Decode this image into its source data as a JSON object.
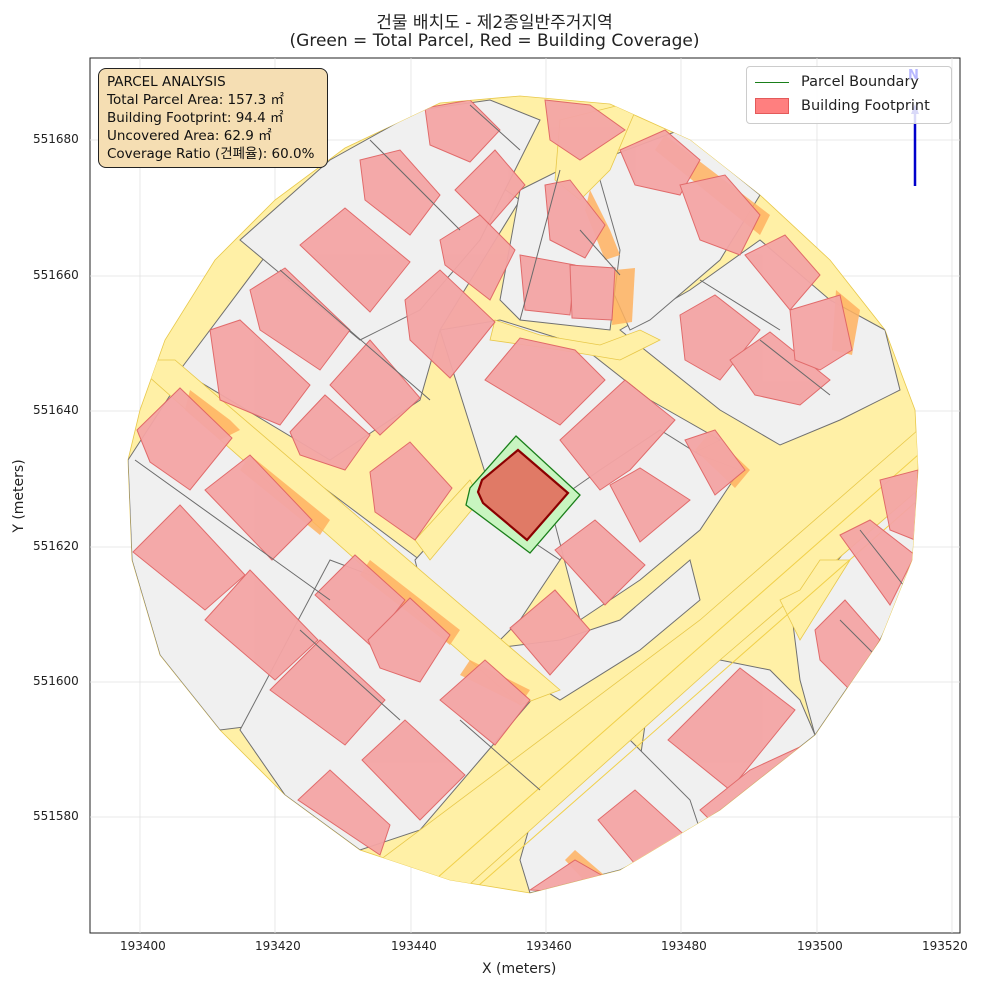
{
  "title": {
    "line1": "건물 배치도 - 제2종일반주거지역",
    "line2": "(Green = Total Parcel, Red = Building Coverage)"
  },
  "axes": {
    "xlabel": "X (meters)",
    "ylabel": "Y (meters)",
    "xticks": [
      "193400",
      "193420",
      "193440",
      "193460",
      "193480",
      "193500",
      "193520"
    ],
    "yticks": [
      "551680",
      "551660",
      "551640",
      "551620",
      "551600",
      "551580"
    ]
  },
  "info_box": {
    "heading": "PARCEL ANALYSIS",
    "total_area": "Total Parcel Area: 157.3 ㎡",
    "footprint": "Building Footprint: 94.4 ㎡",
    "uncovered": "Uncovered Area: 62.9 ㎡",
    "coverage": "Coverage Ratio (건폐율): 60.0%"
  },
  "legend": {
    "parcel_boundary": "Parcel Boundary",
    "building_footprint": "Building Footprint"
  },
  "north_arrow": {
    "label": "N"
  },
  "colors": {
    "road": "#fff0a6",
    "road_edge": "#e8c84a",
    "parcel_fill": "#f0f0f0",
    "parcel_line": "#707070",
    "building_fill": "#f4a5a5",
    "building_edge": "#e06464",
    "setback": "#ffb260",
    "target_parcel": "#c8f5c0",
    "target_parcel_edge": "#1a7f1a",
    "target_building": "#e07a66",
    "target_building_edge": "#8b0000",
    "north_arrow": "#0000cc"
  }
}
